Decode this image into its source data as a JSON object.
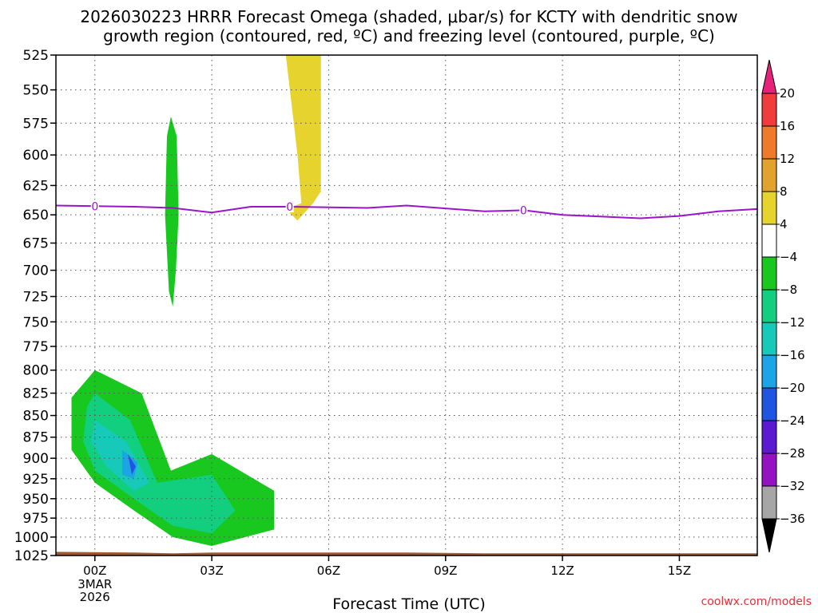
{
  "title_line1": "2026030223 HRRR Forecast Omega (shaded, μbar/s) for KCTY with dendritic snow",
  "title_line2": "growth region (contoured, red, ºC) and freezing level (contoured, purple, ºC)",
  "credit": "coolwx.com/models",
  "chart_data": {
    "type": "contour",
    "xlabel": "Forecast Time (UTC)",
    "x_range_hours": [
      -1,
      17
    ],
    "x_ticks": [
      {
        "hour": 0,
        "label": "00Z",
        "sub": [
          "3MAR",
          "2026"
        ]
      },
      {
        "hour": 3,
        "label": "03Z"
      },
      {
        "hour": 6,
        "label": "06Z"
      },
      {
        "hour": 9,
        "label": "09Z"
      },
      {
        "hour": 12,
        "label": "12Z"
      },
      {
        "hour": 15,
        "label": "15Z"
      }
    ],
    "y_range_hPa": [
      525,
      1025
    ],
    "y_ticks": [
      525,
      550,
      575,
      600,
      625,
      650,
      675,
      700,
      725,
      750,
      775,
      800,
      825,
      850,
      875,
      900,
      925,
      950,
      975,
      1000,
      1025
    ],
    "grid": true,
    "colorbar": {
      "labels": [
        "20",
        "16",
        "12",
        "8",
        "4",
        "−4",
        "−8",
        "−12",
        "−16",
        "−20",
        "−24",
        "−28",
        "−32",
        "−36"
      ],
      "bins": [
        {
          "color": "#e8217a",
          "kind": "top"
        },
        {
          "color": "#f03c3c"
        },
        {
          "color": "#ee7a2a"
        },
        {
          "color": "#e2a32e"
        },
        {
          "color": "#e6d32e"
        },
        {
          "color": "#ffffff"
        },
        {
          "color": "#18c81e"
        },
        {
          "color": "#11cf7e"
        },
        {
          "color": "#17c9b8"
        },
        {
          "color": "#1ca4e6"
        },
        {
          "color": "#1f55e0"
        },
        {
          "color": "#5b1ad0"
        },
        {
          "color": "#9512c2"
        },
        {
          "color": "#a6a6a6"
        },
        {
          "color": "#000000",
          "kind": "bottom"
        }
      ]
    },
    "freezing_level": {
      "color": "#9a14c8",
      "label": "0",
      "label_hours": [
        0,
        5,
        11
      ],
      "points": [
        [
          -1,
          642
        ],
        [
          1,
          643
        ],
        [
          2,
          644
        ],
        [
          3,
          648
        ],
        [
          4,
          643
        ],
        [
          5,
          643
        ],
        [
          7,
          644
        ],
        [
          8,
          642
        ],
        [
          10,
          647
        ],
        [
          11,
          646
        ],
        [
          12,
          650
        ],
        [
          14,
          653
        ],
        [
          15,
          651
        ],
        [
          16,
          647
        ],
        [
          17,
          645
        ]
      ]
    },
    "omega_regions": [
      {
        "value_bin": "4 to 8",
        "color": "#e6d32e",
        "points": [
          [
            4.9,
            525
          ],
          [
            5.8,
            525
          ],
          [
            5.8,
            630
          ],
          [
            5.6,
            640
          ],
          [
            5.2,
            655
          ],
          [
            4.9,
            645
          ],
          [
            5.3,
            640
          ],
          [
            5.2,
            600
          ]
        ]
      },
      {
        "value_bin": "-8 to -4",
        "color": "#18c81e",
        "points": [
          [
            1.95,
            570
          ],
          [
            2.1,
            585
          ],
          [
            2.15,
            650
          ],
          [
            2.08,
            700
          ],
          [
            2.0,
            735
          ],
          [
            1.9,
            720
          ],
          [
            1.8,
            650
          ],
          [
            1.85,
            585
          ]
        ]
      },
      {
        "value_bin": "-8 to -4",
        "color": "#18c81e",
        "points": [
          [
            0,
            800
          ],
          [
            1.2,
            825
          ],
          [
            1.95,
            915
          ],
          [
            3,
            895
          ],
          [
            4.6,
            940
          ],
          [
            4.6,
            990
          ],
          [
            3.5,
            1005
          ],
          [
            3,
            1012
          ],
          [
            2,
            1000
          ],
          [
            1,
            965
          ],
          [
            0,
            930
          ],
          [
            -0.6,
            890
          ],
          [
            -0.6,
            830
          ]
        ]
      },
      {
        "value_bin": "-12 to -8",
        "color": "#11cf7e",
        "points": [
          [
            0,
            825
          ],
          [
            0.9,
            855
          ],
          [
            1.6,
            930
          ],
          [
            3,
            920
          ],
          [
            3.6,
            965
          ],
          [
            3,
            995
          ],
          [
            2,
            985
          ],
          [
            1,
            950
          ],
          [
            0,
            915
          ],
          [
            -0.3,
            880
          ],
          [
            -0.2,
            840
          ]
        ]
      },
      {
        "value_bin": "-16 to -12",
        "color": "#17c9b8",
        "points": [
          [
            0,
            855
          ],
          [
            0.8,
            880
          ],
          [
            1.4,
            930
          ],
          [
            1.0,
            940
          ],
          [
            0.3,
            910
          ],
          [
            -0.1,
            880
          ]
        ]
      },
      {
        "value_bin": "-20 to -16",
        "color": "#1ca4e6",
        "points": [
          [
            0.7,
            890
          ],
          [
            1.1,
            905
          ],
          [
            1.0,
            925
          ],
          [
            0.7,
            920
          ]
        ]
      },
      {
        "value_bin": "-24 to -20",
        "color": "#1f55e0",
        "points": [
          [
            0.85,
            895
          ],
          [
            1.05,
            910
          ],
          [
            0.95,
            920
          ]
        ]
      }
    ],
    "terrain": {
      "color": "#9c5a34",
      "points": [
        [
          -1,
          1020
        ],
        [
          1,
          1021
        ],
        [
          2,
          1022
        ],
        [
          3,
          1021
        ],
        [
          8,
          1021
        ],
        [
          10,
          1022
        ],
        [
          17,
          1022
        ]
      ]
    }
  }
}
